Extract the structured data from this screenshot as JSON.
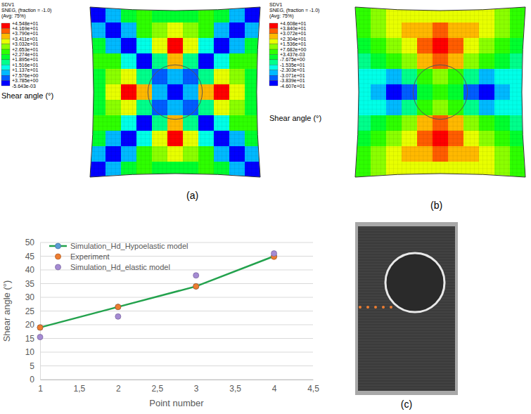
{
  "chart_data": {
    "type": "line",
    "x_label": "Point number",
    "y_label": "Shear angle (°)",
    "xlim": [
      1,
      4.5
    ],
    "xticks": [
      1,
      {
        "value": 1.5,
        "label": "1,5"
      },
      2,
      {
        "value": 2.5,
        "label": "2,5"
      },
      3,
      {
        "value": 3.5,
        "label": "3,5"
      },
      4,
      {
        "value": 4.5,
        "label": "4,5"
      }
    ],
    "ylim": [
      0,
      50
    ],
    "yticks": [
      0,
      5,
      10,
      15,
      20,
      25,
      30,
      35,
      40,
      45,
      50
    ],
    "grid": true,
    "legend": "upper left",
    "x": [
      1,
      2,
      3,
      4
    ],
    "series": [
      {
        "name": "Simulation_Hd_Hypoelastic model",
        "color": "#23a24d",
        "marker": "circle",
        "line_style": "solid",
        "values": [
          19,
          26.5,
          34,
          45
        ]
      },
      {
        "name": "Experiment",
        "color": "#ed7d31",
        "marker": "circle",
        "line_style": "none",
        "values": [
          19,
          26.5,
          34,
          44.8
        ]
      },
      {
        "name": "Simulation_Hd_elastic model",
        "color": "#a58bd3",
        "marker": "circle",
        "line_style": "none",
        "values": [
          15.5,
          23,
          38,
          46
        ]
      }
    ]
  },
  "panels": [
    {
      "label": "(a)",
      "legend_title": [
        "SDV1",
        "SNEG, (fraction = -1.0)",
        "(Avg: 75%)"
      ],
      "quantity": "Shear angle (°)",
      "colorbar": {
        "range": [
          -0.005643,
          45.48
        ],
        "ticks": [
          {
            "value": 45.48,
            "label": "+4.548e+01"
          },
          {
            "value": 41.69,
            "label": "+4.169e+01"
          },
          {
            "value": 37.9,
            "label": "+3.790e+01"
          },
          {
            "value": 34.11,
            "label": "+3.411e+01"
          },
          {
            "value": 30.32,
            "label": "+3.032e+01"
          },
          {
            "value": 26.53,
            "label": "+2.653e+01"
          },
          {
            "value": 22.74,
            "label": "+2.274e+01"
          },
          {
            "value": 18.95,
            "label": "+1.895e+01"
          },
          {
            "value": 15.16,
            "label": "+1.516e+01"
          },
          {
            "value": 11.37,
            "label": "+1.137e+01"
          },
          {
            "value": 7.576,
            "label": "+7.576e+00"
          },
          {
            "value": 3.785,
            "label": "+3.785e+00"
          },
          {
            "value": -0.005643,
            "label": "-5.643e-03"
          }
        ],
        "colors": [
          "#ff0000",
          "#ff5d00",
          "#ffb900",
          "#e8ff00",
          "#8bff00",
          "#2eff00",
          "#00ff2e",
          "#00ff8b",
          "#00ffe8",
          "#00b9ff",
          "#005dff",
          "#0000ff"
        ]
      },
      "cells": [
        [
          2,
          10,
          22,
          24,
          22,
          20,
          22,
          24,
          22,
          10,
          2
        ],
        [
          10,
          2,
          10,
          24,
          28,
          34,
          28,
          24,
          10,
          2,
          10
        ],
        [
          22,
          10,
          2,
          14,
          32,
          44,
          32,
          14,
          2,
          10,
          22
        ],
        [
          24,
          24,
          14,
          2,
          18,
          36,
          18,
          2,
          14,
          24,
          24
        ],
        [
          22,
          28,
          32,
          18,
          4,
          8,
          4,
          18,
          32,
          28,
          22
        ],
        [
          20,
          34,
          44,
          36,
          8,
          3,
          8,
          36,
          44,
          34,
          20
        ],
        [
          22,
          28,
          32,
          18,
          4,
          8,
          4,
          18,
          32,
          28,
          22
        ],
        [
          24,
          24,
          14,
          2,
          18,
          36,
          18,
          2,
          14,
          24,
          24
        ],
        [
          22,
          10,
          2,
          14,
          32,
          44,
          32,
          14,
          2,
          10,
          22
        ],
        [
          10,
          2,
          10,
          24,
          28,
          34,
          28,
          24,
          10,
          2,
          10
        ],
        [
          2,
          10,
          22,
          24,
          22,
          20,
          22,
          24,
          22,
          10,
          2
        ]
      ]
    },
    {
      "label": "(b)",
      "legend_title": [
        "SDV1",
        "SNEG, (fraction = -1.0)",
        "(Avg: 75%)"
      ],
      "quantity": "Shear angle (°)",
      "colorbar": {
        "range": [
          -46.07,
          46.08
        ],
        "ticks": [
          {
            "value": 46.08,
            "label": "+4.608e+01"
          },
          {
            "value": 38.4,
            "label": "+3.840e+01"
          },
          {
            "value": 30.72,
            "label": "+3.072e+01"
          },
          {
            "value": 23.04,
            "label": "+2.304e+01"
          },
          {
            "value": 15.36,
            "label": "+1.536e+01"
          },
          {
            "value": 7.682,
            "label": "+7.682e+00"
          },
          {
            "value": 0.003437,
            "label": "+3.437e-03"
          },
          {
            "value": -7.675,
            "label": "-7.675e+00"
          },
          {
            "value": -15.35,
            "label": "-1.535e+01"
          },
          {
            "value": -23.03,
            "label": "-2.303e+01"
          },
          {
            "value": -30.71,
            "label": "-3.071e+01"
          },
          {
            "value": -38.39,
            "label": "-3.839e+01"
          },
          {
            "value": -46.07,
            "label": "-4.607e+01"
          }
        ],
        "colors": [
          "#ff0000",
          "#ff5d00",
          "#ffb900",
          "#e8ff00",
          "#8bff00",
          "#2eff00",
          "#00ff2e",
          "#00ff8b",
          "#00ffe8",
          "#00b9ff",
          "#005dff",
          "#0000ff"
        ]
      },
      "cells": [
        [
          5,
          12,
          18,
          22,
          22,
          22,
          22,
          22,
          18,
          12,
          5
        ],
        [
          2,
          8,
          18,
          26,
          30,
          34,
          30,
          26,
          18,
          8,
          2
        ],
        [
          -2,
          2,
          10,
          22,
          36,
          42,
          36,
          22,
          10,
          2,
          -2
        ],
        [
          -8,
          -4,
          2,
          12,
          26,
          34,
          26,
          12,
          2,
          -4,
          -8
        ],
        [
          -16,
          -20,
          -26,
          -14,
          4,
          10,
          4,
          -14,
          -26,
          -20,
          -16
        ],
        [
          -18,
          -30,
          -42,
          -34,
          -6,
          4,
          -6,
          -34,
          -42,
          -30,
          -18
        ],
        [
          -16,
          -20,
          -26,
          -14,
          4,
          10,
          4,
          -14,
          -26,
          -20,
          -16
        ],
        [
          -8,
          -4,
          2,
          12,
          26,
          34,
          26,
          12,
          2,
          -4,
          -8
        ],
        [
          -2,
          2,
          10,
          22,
          36,
          42,
          36,
          22,
          10,
          2,
          -2
        ],
        [
          2,
          8,
          18,
          26,
          30,
          34,
          30,
          26,
          18,
          8,
          2
        ],
        [
          5,
          12,
          18,
          22,
          22,
          22,
          22,
          22,
          18,
          12,
          5
        ]
      ]
    },
    {
      "label": "(c)"
    }
  ]
}
